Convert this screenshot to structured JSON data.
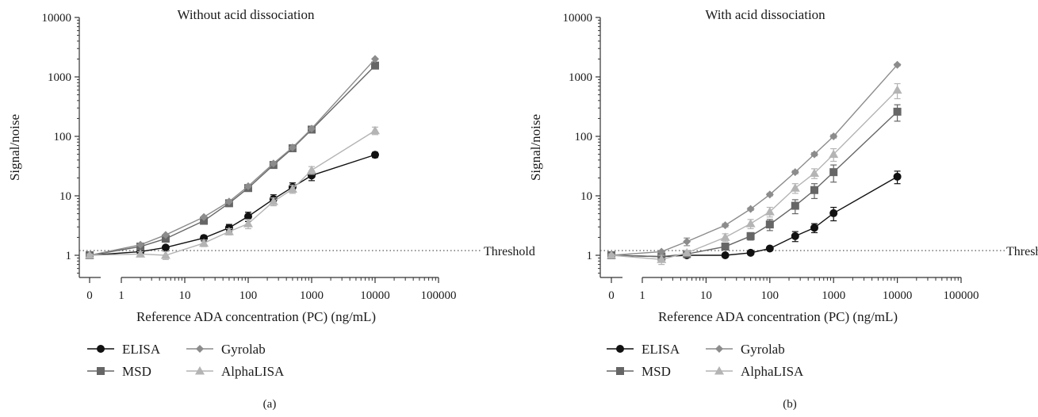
{
  "chart_data": [
    {
      "type": "line",
      "title": "Without acid dissociation",
      "panel_label": "(a)",
      "xlabel": "Reference ADA concentration (PC) (ng/mL)",
      "ylabel": "Signal/noise",
      "xscale": "log (broken axis with 0)",
      "yscale": "log",
      "xlim": [
        1,
        100000
      ],
      "ylim": [
        0.5,
        10000
      ],
      "x_ticks": [
        "0",
        "1",
        "10",
        "100",
        "1000",
        "10000",
        "100000"
      ],
      "y_ticks": [
        "1",
        "10",
        "100",
        "1000",
        "10000"
      ],
      "threshold": {
        "value": 1.2,
        "label": "Threshold"
      },
      "legend": [
        "ELISA",
        "MSD",
        "Gyrolab",
        "AlphaLISA"
      ],
      "x": [
        0,
        2,
        5,
        20,
        50,
        100,
        250,
        500,
        1000,
        10000
      ],
      "series": [
        {
          "name": "ELISA",
          "values": [
            1.0,
            1.15,
            1.35,
            1.95,
            2.9,
            4.5,
            8.8,
            14.0,
            22.0,
            49.0
          ],
          "errors": [
            0.05,
            0.05,
            0.08,
            0.2,
            0.4,
            0.8,
            1.6,
            2.5,
            4.0,
            5.0
          ]
        },
        {
          "name": "MSD",
          "values": [
            1.0,
            1.4,
            1.9,
            3.8,
            7.5,
            13.5,
            33.0,
            63.0,
            130.0,
            1550.0
          ],
          "errors": [
            0.03,
            0.05,
            0.1,
            0.2,
            0.4,
            0.8,
            2.0,
            4.0,
            8.0,
            90.0
          ]
        },
        {
          "name": "Gyrolab",
          "values": [
            1.0,
            1.5,
            2.2,
            4.4,
            8.0,
            14.5,
            35.0,
            65.0,
            135.0,
            2000.0
          ],
          "errors": [
            0.02,
            0.03,
            0.05,
            0.1,
            0.2,
            0.4,
            1.0,
            2.0,
            4.0,
            30.0
          ]
        },
        {
          "name": "AlphaLISA",
          "values": [
            1.0,
            1.05,
            1.0,
            1.6,
            2.5,
            3.4,
            8.0,
            13.0,
            27.0,
            125.0
          ],
          "errors": [
            0.05,
            0.1,
            0.15,
            0.2,
            0.3,
            0.6,
            1.2,
            2.0,
            4.0,
            18.0
          ]
        }
      ]
    },
    {
      "type": "line",
      "title": "With acid dissociation",
      "panel_label": "(b)",
      "xlabel": "Reference ADA concentration (PC) (ng/mL)",
      "ylabel": "Signal/noise",
      "xscale": "log (broken axis with 0)",
      "yscale": "log",
      "xlim": [
        1,
        100000
      ],
      "ylim": [
        0.5,
        10000
      ],
      "x_ticks": [
        "0",
        "1",
        "10",
        "100",
        "1000",
        "10000",
        "100000"
      ],
      "y_ticks": [
        "1",
        "10",
        "100",
        "1000",
        "10000"
      ],
      "threshold": {
        "value": 1.2,
        "label": "Threshold"
      },
      "legend": [
        "ELISA",
        "MSD",
        "Gyrolab",
        "AlphaLISA"
      ],
      "x": [
        0,
        2,
        5,
        20,
        50,
        100,
        250,
        500,
        1000,
        10000
      ],
      "series": [
        {
          "name": "ELISA",
          "values": [
            1.0,
            0.95,
            1.0,
            1.0,
            1.1,
            1.3,
            2.1,
            2.9,
            5.1,
            21.0
          ],
          "errors": [
            0.05,
            0.1,
            0.08,
            0.05,
            0.05,
            0.08,
            0.4,
            0.5,
            1.3,
            5.0
          ]
        },
        {
          "name": "MSD",
          "values": [
            1.0,
            0.95,
            1.05,
            1.4,
            2.1,
            3.3,
            6.8,
            12.5,
            25.0,
            260.0
          ],
          "errors": [
            0.05,
            0.1,
            0.1,
            0.15,
            0.3,
            0.7,
            1.8,
            3.5,
            8.0,
            80.0
          ]
        },
        {
          "name": "Gyrolab",
          "values": [
            1.0,
            1.15,
            1.7,
            3.2,
            6.0,
            10.5,
            25.0,
            50.0,
            100.0,
            1600.0
          ],
          "errors": [
            0.02,
            0.05,
            0.25,
            0.2,
            0.3,
            0.5,
            1.5,
            3.0,
            6.0,
            60.0
          ]
        },
        {
          "name": "AlphaLISA",
          "values": [
            1.0,
            0.85,
            1.1,
            2.0,
            3.4,
            5.4,
            13.5,
            24.0,
            50.0,
            600.0
          ],
          "errors": [
            0.05,
            0.15,
            0.1,
            0.3,
            0.6,
            1.0,
            2.5,
            4.5,
            12.0,
            170.0
          ]
        }
      ]
    }
  ],
  "styles": {
    "ELISA": {
      "color": "#111111",
      "marker": "circle"
    },
    "MSD": {
      "color": "#666666",
      "marker": "square"
    },
    "Gyrolab": {
      "color": "#8c8c8c",
      "marker": "diamond"
    },
    "AlphaLISA": {
      "color": "#b4b4b4",
      "marker": "triangle"
    }
  }
}
